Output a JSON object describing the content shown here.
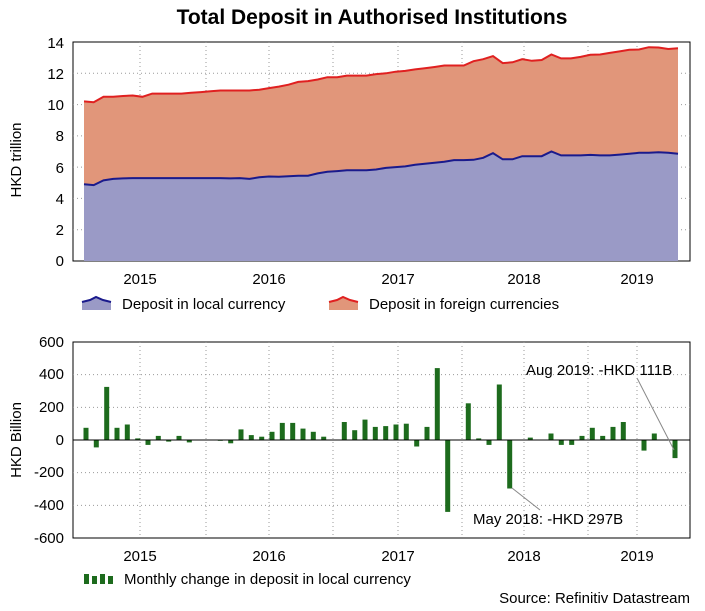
{
  "colors": {
    "local_fill": "#9a9ac6",
    "local_line": "#1a1a8c",
    "foreign_fill": "#e1967a",
    "foreign_line": "#e02020",
    "bar_fill": "#1d6b1d",
    "grid": "#9a9a9a"
  },
  "chart_data": [
    {
      "type": "area",
      "title": "Total Deposit in Authorised Institutions",
      "ylabel": "HKD trillion",
      "xlabel": "",
      "ylim": [
        0,
        14
      ],
      "yticks": [
        "0",
        "2",
        "4",
        "6",
        "8",
        "10",
        "12",
        "14"
      ],
      "xticks": [
        "2015",
        "2016",
        "2017",
        "2018",
        "2019"
      ],
      "x_start": "2014-09",
      "x_end": "2019-08",
      "stacked": true,
      "series": [
        {
          "name": "Deposit in local currency",
          "values": [
            4.9,
            4.85,
            5.15,
            5.25,
            5.28,
            5.3,
            5.3,
            5.3,
            5.3,
            5.3,
            5.3,
            5.3,
            5.3,
            5.3,
            5.3,
            5.28,
            5.3,
            5.25,
            5.35,
            5.4,
            5.38,
            5.42,
            5.45,
            5.45,
            5.6,
            5.7,
            5.75,
            5.8,
            5.8,
            5.8,
            5.85,
            5.95,
            6.0,
            6.05,
            6.15,
            6.22,
            6.28,
            6.35,
            6.45,
            6.45,
            6.47,
            6.6,
            6.9,
            6.5,
            6.5,
            6.7,
            6.7,
            6.7,
            7.0,
            6.75,
            6.75,
            6.75,
            6.78,
            6.75,
            6.75,
            6.8,
            6.85,
            6.92,
            6.92,
            6.95,
            6.92,
            6.85
          ]
        },
        {
          "name": "Deposit in foreign currencies",
          "values": [
            5.3,
            5.3,
            5.35,
            5.25,
            5.27,
            5.28,
            5.2,
            5.4,
            5.4,
            5.4,
            5.4,
            5.45,
            5.5,
            5.55,
            5.6,
            5.62,
            5.6,
            5.65,
            5.6,
            5.65,
            5.77,
            5.85,
            6.0,
            6.05,
            6.0,
            6.05,
            6.0,
            6.05,
            6.05,
            6.05,
            6.1,
            6.05,
            6.1,
            6.1,
            6.1,
            6.1,
            6.12,
            6.15,
            6.05,
            6.05,
            6.3,
            6.3,
            6.2,
            6.15,
            6.2,
            6.2,
            6.1,
            6.15,
            6.2,
            6.2,
            6.2,
            6.3,
            6.4,
            6.45,
            6.55,
            6.6,
            6.65,
            6.6,
            6.75,
            6.7,
            6.63,
            6.75
          ]
        }
      ]
    },
    {
      "type": "bar",
      "ylabel": "HKD Billion",
      "xlabel": "",
      "ylim": [
        -600,
        600
      ],
      "yticks": [
        "-600",
        "-400",
        "-200",
        "0",
        "200",
        "400",
        "600"
      ],
      "xticks": [
        "2015",
        "2016",
        "2017",
        "2018",
        "2019"
      ],
      "series": [
        {
          "name": "Monthly change in deposit in local currency",
          "values": [
            75,
            -45,
            325,
            75,
            95,
            10,
            -30,
            25,
            -10,
            25,
            -15,
            0,
            0,
            -5,
            -20,
            65,
            30,
            20,
            50,
            105,
            105,
            70,
            50,
            20,
            0,
            110,
            60,
            125,
            80,
            85,
            95,
            100,
            -40,
            80,
            440,
            -440,
            0,
            225,
            10,
            -30,
            340,
            -297,
            0,
            15,
            0,
            40,
            -30,
            -30,
            25,
            75,
            25,
            80,
            110,
            0,
            -65,
            40,
            0,
            -111
          ]
        }
      ]
    }
  ],
  "legends": {
    "top": [
      "Deposit in local currency",
      "Deposit in foreign currencies"
    ],
    "bottom": [
      "Monthly change in deposit in local currency"
    ]
  },
  "annotations": {
    "aug2019": "Aug 2019: -HKD 111B",
    "may2018": "May 2018: -HKD 297B"
  },
  "source": "Source: Refinitiv Datastream"
}
